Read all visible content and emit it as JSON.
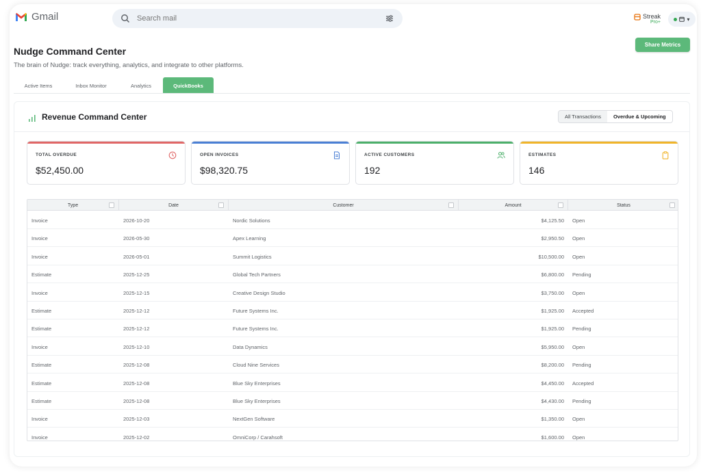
{
  "app": {
    "name": "Gmail"
  },
  "search": {
    "placeholder": "Search mail"
  },
  "brand": {
    "name": "Streak",
    "tier": "Pro+"
  },
  "account": {
    "menu_glyph": "▾"
  },
  "header": {
    "title": "Nudge Command Center",
    "subtitle": "The brain of Nudge: track everything, analytics, and integrate to other platforms.",
    "share_label": "Share Metrics"
  },
  "tabs": [
    {
      "label": "Active Items",
      "active": false
    },
    {
      "label": "Inbox Monitor",
      "active": false
    },
    {
      "label": "Analytics",
      "active": false
    },
    {
      "label": "QuickBooks",
      "active": true
    }
  ],
  "panel": {
    "title": "Revenue Command Center",
    "toggle": [
      "All Transactions",
      "Overdue & Upcoming"
    ],
    "toggle_selected": "Overdue & Upcoming"
  },
  "cards": [
    {
      "label": "TOTAL OVERDUE",
      "value": "$52,450.00",
      "color": "#e06666",
      "icon": "clock-icon"
    },
    {
      "label": "OPEN INVOICES",
      "value": "$98,320.75",
      "color": "#4a7fd4",
      "icon": "document-icon"
    },
    {
      "label": "ACTIVE CUSTOMERS",
      "value": "192",
      "color": "#4caf6a",
      "icon": "users-icon"
    },
    {
      "label": "ESTIMATES",
      "value": "146",
      "color": "#f0b429",
      "icon": "clipboard-icon"
    }
  ],
  "table": {
    "columns": [
      "Type",
      "Date",
      "Customer",
      "Amount",
      "Status"
    ],
    "rows": [
      [
        "Invoice",
        "2026-10-20",
        "Nordic Solutions",
        "$4,125.50",
        "Open"
      ],
      [
        "Invoice",
        "2026-05-30",
        "Apex Learning",
        "$2,950.50",
        "Open"
      ],
      [
        "Invoice",
        "2026-05-01",
        "Summit Logistics",
        "$10,500.00",
        "Open"
      ],
      [
        "Estimate",
        "2025-12-25",
        "Global Tech Partners",
        "$6,800.00",
        "Pending"
      ],
      [
        "Invoice",
        "2025-12-15",
        "Creative Design Studio",
        "$3,750.00",
        "Open"
      ],
      [
        "Estimate",
        "2025-12-12",
        "Future Systems Inc.",
        "$1,925.00",
        "Accepted"
      ],
      [
        "Estimate",
        "2025-12-12",
        "Future Systems Inc.",
        "$1,925.00",
        "Pending"
      ],
      [
        "Invoice",
        "2025-12-10",
        "Data Dynamics",
        "$5,950.00",
        "Open"
      ],
      [
        "Estimate",
        "2025-12-08",
        "Cloud Nine Services",
        "$8,200.00",
        "Pending"
      ],
      [
        "Estimate",
        "2025-12-08",
        "Blue Sky Enterprises",
        "$4,450.00",
        "Accepted"
      ],
      [
        "Estimate",
        "2025-12-08",
        "Blue Sky Enterprises",
        "$4,430.00",
        "Pending"
      ],
      [
        "Invoice",
        "2025-12-03",
        "NextGen Software",
        "$1,350.00",
        "Open"
      ],
      [
        "Invoice",
        "2025-12-02",
        "OmniCorp / Carahsoft",
        "$1,600.00",
        "Open"
      ]
    ]
  }
}
